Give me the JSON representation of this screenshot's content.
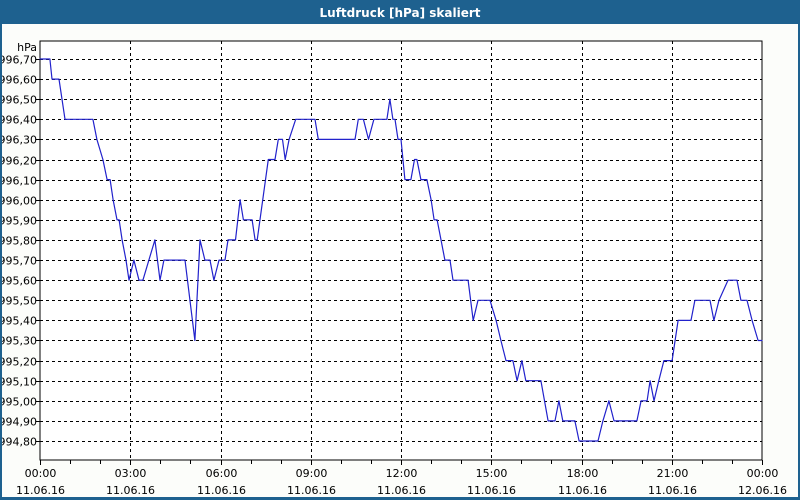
{
  "window": {
    "title": "Luftdruck [hPa] skaliert"
  },
  "colors": {
    "titlebar": "#1E618F",
    "window_border": "#1E618F",
    "background": "#FCFDFA",
    "plot_background": "#FFFFFF",
    "grid": "#000000",
    "axis": "#000000",
    "text": "#000000",
    "line": "#2222CC"
  },
  "chart_data": {
    "type": "line",
    "title": "Luftdruck [hPa] skaliert",
    "ylabel": "hPa",
    "xlabel": "",
    "grid": "dashed",
    "legend": "none",
    "y_axis": {
      "min": 994.8,
      "max": 996.7,
      "step": 0.1
    },
    "x_axis": {
      "min_hours": 0,
      "max_hours": 24,
      "major_step_hours": 3,
      "minor_step_hours": 1
    },
    "y_ticks": [
      "996,70",
      "996,60",
      "996,50",
      "996,40",
      "996,30",
      "996,20",
      "996,10",
      "996,00",
      "995,90",
      "995,80",
      "995,70",
      "995,60",
      "995,50",
      "995,40",
      "995,30",
      "995,20",
      "995,10",
      "995,00",
      "994,90",
      "994,80"
    ],
    "x_ticks": [
      {
        "time": "00:00",
        "date": "11.06.16"
      },
      {
        "time": "03:00",
        "date": "11.06.16"
      },
      {
        "time": "06:00",
        "date": "11.06.16"
      },
      {
        "time": "09:00",
        "date": "11.06.16"
      },
      {
        "time": "12:00",
        "date": "11.06.16"
      },
      {
        "time": "15:00",
        "date": "11.06.16"
      },
      {
        "time": "18:00",
        "date": "11.06.16"
      },
      {
        "time": "21:00",
        "date": "11.06.16"
      },
      {
        "time": "00:00",
        "date": "12.06.16"
      }
    ],
    "series": [
      {
        "name": "Luftdruck",
        "unit": "hPa",
        "points": [
          [
            0,
            996.7
          ],
          [
            0.33,
            996.7
          ],
          [
            0.4,
            996.6
          ],
          [
            0.63,
            996.6
          ],
          [
            0.83,
            996.4
          ],
          [
            1.76,
            996.4
          ],
          [
            1.89,
            996.3
          ],
          [
            2.09,
            996.2
          ],
          [
            2.23,
            996.1
          ],
          [
            2.33,
            996.1
          ],
          [
            2.43,
            996.0
          ],
          [
            2.56,
            995.9
          ],
          [
            2.63,
            995.9
          ],
          [
            2.73,
            995.8
          ],
          [
            2.86,
            995.7
          ],
          [
            2.96,
            995.6
          ],
          [
            3.12,
            995.7
          ],
          [
            3.29,
            995.6
          ],
          [
            3.42,
            995.6
          ],
          [
            3.82,
            995.8
          ],
          [
            3.99,
            995.6
          ],
          [
            4.12,
            995.7
          ],
          [
            4.82,
            995.7
          ],
          [
            5.15,
            995.3
          ],
          [
            5.32,
            995.8
          ],
          [
            5.48,
            995.7
          ],
          [
            5.65,
            995.7
          ],
          [
            5.78,
            995.6
          ],
          [
            5.95,
            995.7
          ],
          [
            6.15,
            995.7
          ],
          [
            6.25,
            995.8
          ],
          [
            6.5,
            995.8
          ],
          [
            6.65,
            996.0
          ],
          [
            6.76,
            995.9
          ],
          [
            7.05,
            995.9
          ],
          [
            7.15,
            995.8
          ],
          [
            7.22,
            995.8
          ],
          [
            7.59,
            996.2
          ],
          [
            7.81,
            996.2
          ],
          [
            7.92,
            996.3
          ],
          [
            8.06,
            996.3
          ],
          [
            8.15,
            996.2
          ],
          [
            8.28,
            996.3
          ],
          [
            8.5,
            996.4
          ],
          [
            9.14,
            996.4
          ],
          [
            9.25,
            996.3
          ],
          [
            10.47,
            996.3
          ],
          [
            10.58,
            996.4
          ],
          [
            10.75,
            996.4
          ],
          [
            10.92,
            996.3
          ],
          [
            11.1,
            996.4
          ],
          [
            11.53,
            996.4
          ],
          [
            11.63,
            996.5
          ],
          [
            11.73,
            996.4
          ],
          [
            11.8,
            996.4
          ],
          [
            11.9,
            996.3
          ],
          [
            12.0,
            996.3
          ],
          [
            12.13,
            996.1
          ],
          [
            12.33,
            996.1
          ],
          [
            12.45,
            996.2
          ],
          [
            12.53,
            996.2
          ],
          [
            12.66,
            996.1
          ],
          [
            12.86,
            996.1
          ],
          [
            13.0,
            996.0
          ],
          [
            13.1,
            995.9
          ],
          [
            13.2,
            995.9
          ],
          [
            13.33,
            995.8
          ],
          [
            13.46,
            995.7
          ],
          [
            13.63,
            995.7
          ],
          [
            13.73,
            995.6
          ],
          [
            14.23,
            995.6
          ],
          [
            14.4,
            995.4
          ],
          [
            14.56,
            995.5
          ],
          [
            14.96,
            995.5
          ],
          [
            15.16,
            995.4
          ],
          [
            15.32,
            995.3
          ],
          [
            15.49,
            995.2
          ],
          [
            15.72,
            995.2
          ],
          [
            15.86,
            995.1
          ],
          [
            16.02,
            995.2
          ],
          [
            16.15,
            995.1
          ],
          [
            16.65,
            995.1
          ],
          [
            16.89,
            994.9
          ],
          [
            17.12,
            994.9
          ],
          [
            17.25,
            995.0
          ],
          [
            17.38,
            994.9
          ],
          [
            17.78,
            994.9
          ],
          [
            17.92,
            994.8
          ],
          [
            18.55,
            994.8
          ],
          [
            18.71,
            994.9
          ],
          [
            18.91,
            995.0
          ],
          [
            19.08,
            994.9
          ],
          [
            19.84,
            994.9
          ],
          [
            19.98,
            995.0
          ],
          [
            20.18,
            995.0
          ],
          [
            20.28,
            995.1
          ],
          [
            20.41,
            995.0
          ],
          [
            20.57,
            995.1
          ],
          [
            20.74,
            995.2
          ],
          [
            21.01,
            995.2
          ],
          [
            21.21,
            995.4
          ],
          [
            21.64,
            995.4
          ],
          [
            21.77,
            995.5
          ],
          [
            22.27,
            995.5
          ],
          [
            22.4,
            995.4
          ],
          [
            22.57,
            995.5
          ],
          [
            22.87,
            995.6
          ],
          [
            23.17,
            995.6
          ],
          [
            23.3,
            995.5
          ],
          [
            23.5,
            995.5
          ],
          [
            23.67,
            995.4
          ],
          [
            23.87,
            995.3
          ],
          [
            24.0,
            995.3
          ]
        ]
      }
    ]
  }
}
